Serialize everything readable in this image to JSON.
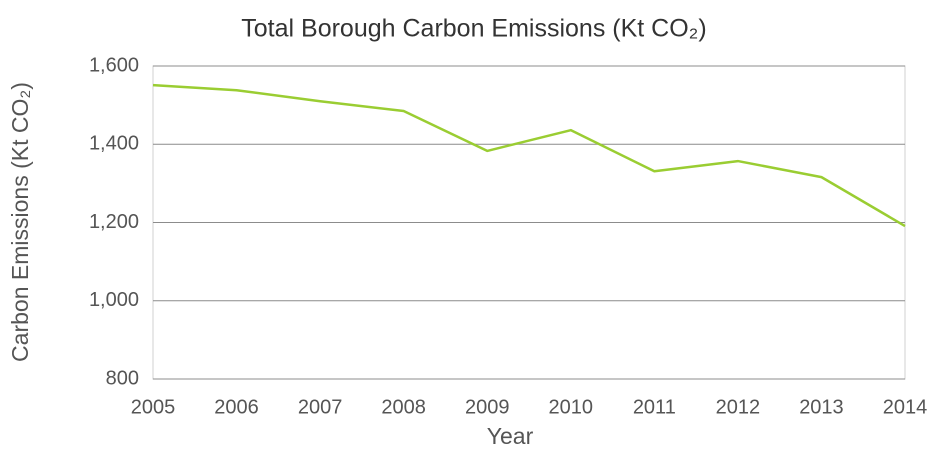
{
  "chart_data": {
    "type": "line",
    "title": "Total Borough Carbon Emissions (Kt CO₂)",
    "x_label": "Year",
    "y_label": "Carbon Emissions (Kt  CO₂)",
    "x": [
      2005,
      2006,
      2007,
      2008,
      2009,
      2010,
      2011,
      2012,
      2013,
      2014
    ],
    "series": [
      {
        "name": "Total Borough Carbon Emissions",
        "color": "#9acd32",
        "values": [
          1551,
          1538,
          1510,
          1485,
          1383,
          1436,
          1331,
          1357,
          1316,
          1191
        ]
      }
    ],
    "xlim": [
      2005,
      2014
    ],
    "xticks": [
      2005,
      2006,
      2007,
      2008,
      2009,
      2010,
      2011,
      2012,
      2013,
      2014
    ],
    "ylim": [
      800,
      1600
    ],
    "yticks": [
      800,
      {
        "value": 1000,
        "label": "1,000"
      },
      {
        "value": 1200,
        "label": "1,200"
      },
      {
        "value": 1400,
        "label": "1,400"
      },
      {
        "value": 1600,
        "label": "1,600"
      }
    ],
    "grid": true
  }
}
